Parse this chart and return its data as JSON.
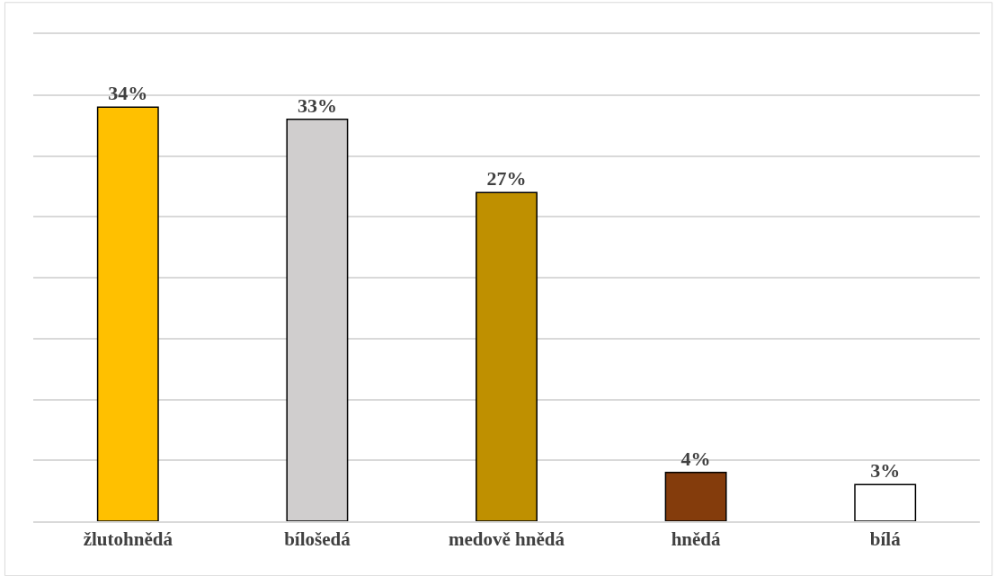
{
  "chart_data": {
    "type": "bar",
    "categories": [
      "žlutohnědá",
      "bílošedá",
      "medově hnědá",
      "hnědá",
      "bílá"
    ],
    "values": [
      34,
      33,
      27,
      4,
      3
    ],
    "colors": [
      "#ffc000",
      "#d0cece",
      "#bf9000",
      "#843c0c",
      "#ffffff"
    ],
    "value_labels": [
      "34%",
      "33%",
      "27%",
      "4%",
      "3%"
    ],
    "ylim": [
      0,
      40
    ],
    "grid": "y",
    "tick_labels": "x"
  }
}
